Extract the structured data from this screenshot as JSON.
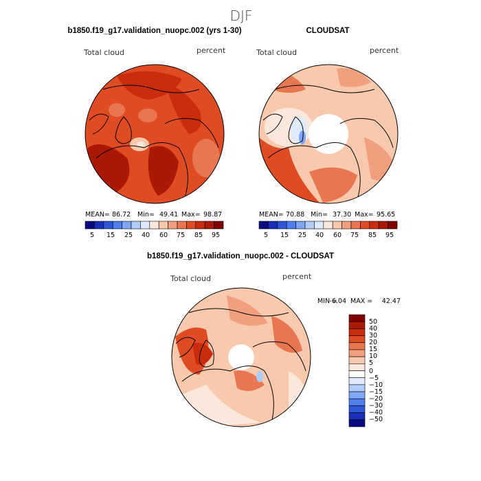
{
  "page": {
    "season_title": "DJF"
  },
  "colors": {
    "abs_scale": [
      "#0a0a80",
      "#1a2fb8",
      "#2f55d9",
      "#4f7fee",
      "#80a7f7",
      "#b0cdfa",
      "#deeafd",
      "#fbe8dc",
      "#f8c9ad",
      "#f1a07f",
      "#e87650",
      "#df4c24",
      "#c92c0a",
      "#a91905",
      "#800000"
    ],
    "diff_scale": [
      "#0a0a80",
      "#1a2fb8",
      "#2f55d9",
      "#4f7fee",
      "#80a7f7",
      "#b0cdfa",
      "#deeafd",
      "#ffffff",
      "#fbe8dc",
      "#f8c9ad",
      "#f1a07f",
      "#e87650",
      "#df4c24",
      "#c92c0a",
      "#a91905",
      "#800000"
    ]
  },
  "chart_data": [
    {
      "type": "heatmap",
      "title": "b1850.f19_g17.validation_nuopc.002 (yrs 1-30)",
      "subtitle_left": "Total cloud",
      "subtitle_right": "percent",
      "stats": {
        "mean_label": "MEAN=",
        "mean": "86.72",
        "min_label": "Min=",
        "min": "49.41",
        "max_label": "Max=",
        "max": "98.87"
      },
      "colorbar_labels": [
        "5",
        "15",
        "25",
        "40",
        "60",
        "75",
        "85",
        "95"
      ]
    },
    {
      "type": "heatmap",
      "title": "CLOUDSAT",
      "subtitle_left": "Total cloud",
      "subtitle_right": "percent",
      "stats": {
        "mean_label": "MEAN=",
        "mean": "70.88",
        "min_label": "Min=",
        "min": "37.30",
        "max_label": "Max=",
        "max": "95.65"
      },
      "colorbar_labels": [
        "5",
        "15",
        "25",
        "40",
        "60",
        "75",
        "85",
        "95"
      ]
    },
    {
      "type": "heatmap",
      "title": "b1850.f19_g17.validation_nuopc.002 - CLOUDSAT",
      "subtitle_left": "Total cloud",
      "subtitle_right": "percent",
      "stats": {
        "min_label": "MIN =",
        "min": "-6.04",
        "max_label": "MAX =",
        "max": "42.47"
      },
      "colorbar_labels": [
        "50",
        "40",
        "30",
        "20",
        "15",
        "10",
        "5",
        "0",
        "−5",
        "−10",
        "−15",
        "−20",
        "−30",
        "−40",
        "−50"
      ]
    }
  ]
}
